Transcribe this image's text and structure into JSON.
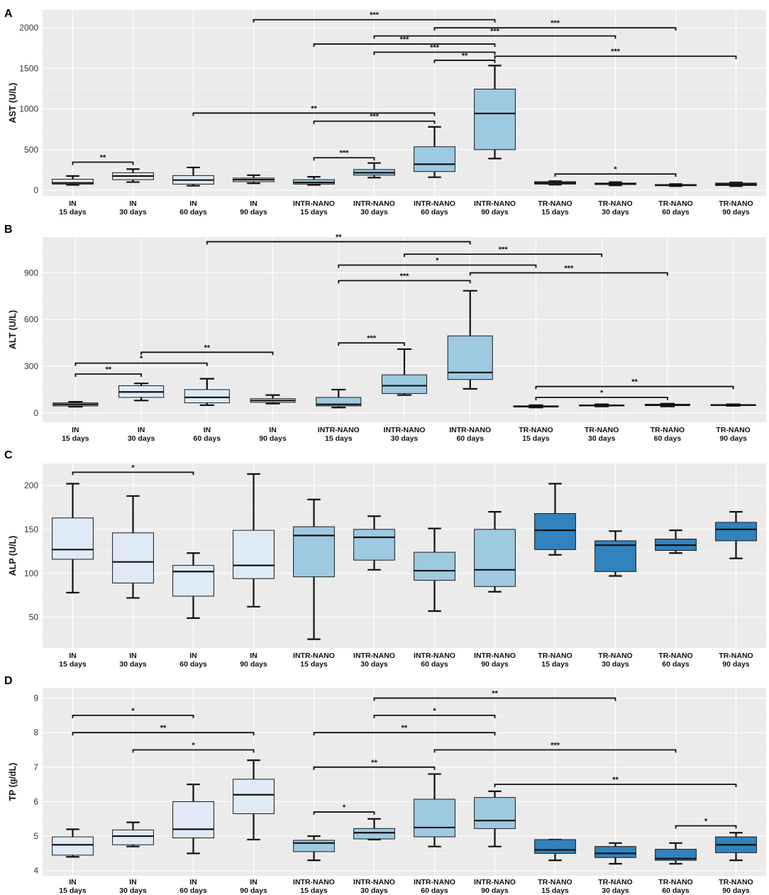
{
  "colors": {
    "IN": "#deebf7",
    "INTR-NANO": "#9ecae1",
    "TR-NANO": "#3182bd"
  },
  "chart_data": [
    {
      "type": "box",
      "panel": "A",
      "ylabel": "AST (U/L)",
      "ylim": [
        -70,
        2220
      ],
      "yticks": [
        0,
        500,
        1000,
        1500,
        2000
      ],
      "categories": [
        {
          "group": "IN",
          "period": "15 days"
        },
        {
          "group": "IN",
          "period": "30 days"
        },
        {
          "group": "IN",
          "period": "60 days"
        },
        {
          "group": "IN",
          "period": "90 days"
        },
        {
          "group": "INTR-NANO",
          "period": "15 days"
        },
        {
          "group": "INTR-NANO",
          "period": "30 days"
        },
        {
          "group": "INTR-NANO",
          "period": "60 days"
        },
        {
          "group": "INTR-NANO",
          "period": "90 days"
        },
        {
          "group": "TR-NANO",
          "period": "15 days"
        },
        {
          "group": "TR-NANO",
          "period": "30 days"
        },
        {
          "group": "TR-NANO",
          "period": "60 days"
        },
        {
          "group": "TR-NANO",
          "period": "90 days"
        }
      ],
      "boxes": [
        {
          "min": 65,
          "q1": 75,
          "median": 90,
          "q3": 135,
          "max": 175
        },
        {
          "min": 100,
          "q1": 130,
          "median": 175,
          "q3": 215,
          "max": 260
        },
        {
          "min": 55,
          "q1": 75,
          "median": 125,
          "q3": 180,
          "max": 280
        },
        {
          "min": 85,
          "q1": 105,
          "median": 130,
          "q3": 150,
          "max": 185
        },
        {
          "min": 65,
          "q1": 75,
          "median": 95,
          "q3": 130,
          "max": 165
        },
        {
          "min": 155,
          "q1": 185,
          "median": 215,
          "q3": 255,
          "max": 335
        },
        {
          "min": 160,
          "q1": 230,
          "median": 320,
          "q3": 535,
          "max": 780
        },
        {
          "min": 390,
          "q1": 500,
          "median": 945,
          "q3": 1245,
          "max": 1535
        },
        {
          "min": 68,
          "q1": 75,
          "median": 90,
          "q3": 105,
          "max": 112
        },
        {
          "min": 60,
          "q1": 70,
          "median": 78,
          "q3": 88,
          "max": 100
        },
        {
          "min": 50,
          "q1": 55,
          "median": 62,
          "q3": 70,
          "max": 75
        },
        {
          "min": 50,
          "q1": 58,
          "median": 72,
          "q3": 88,
          "max": 95
        }
      ],
      "brackets": [
        {
          "from": 1,
          "to": 2,
          "y": 345,
          "label": "**"
        },
        {
          "from": 3,
          "to": 7,
          "y": 950,
          "label": "**"
        },
        {
          "from": 5,
          "to": 6,
          "y": 400,
          "label": "***"
        },
        {
          "from": 5,
          "to": 7,
          "y": 850,
          "label": "***"
        },
        {
          "from": 5,
          "to": 8,
          "y": 1800,
          "label": "***"
        },
        {
          "from": 4,
          "to": 8,
          "y": 2100,
          "label": "***"
        },
        {
          "from": 6,
          "to": 10,
          "y": 1900,
          "label": "***"
        },
        {
          "from": 6,
          "to": 8,
          "y": 1700,
          "label": "***"
        },
        {
          "from": 7,
          "to": 11,
          "y": 2000,
          "label": "***"
        },
        {
          "from": 7,
          "to": 8,
          "y": 1600,
          "label": "**"
        },
        {
          "from": 8,
          "to": 12,
          "y": 1650,
          "label": "***"
        },
        {
          "from": 9,
          "to": 11,
          "y": 200,
          "label": "*"
        }
      ]
    },
    {
      "type": "box",
      "panel": "B",
      "ylabel": "ALT (U/L)",
      "ylim": [
        -60,
        1130
      ],
      "yticks": [
        0,
        300,
        600,
        900
      ],
      "categories": [
        {
          "group": "IN",
          "period": "15 days"
        },
        {
          "group": "IN",
          "period": "30 days"
        },
        {
          "group": "IN",
          "period": "60 days"
        },
        {
          "group": "IN",
          "period": "90 days"
        },
        {
          "group": "INTR-NANO",
          "period": "15 days"
        },
        {
          "group": "INTR-NANO",
          "period": "30 days"
        },
        {
          "group": "INTR-NANO",
          "period": "60 days"
        },
        {
          "group": "TR-NANO",
          "period": "15 days"
        },
        {
          "group": "TR-NANO",
          "period": "30 days"
        },
        {
          "group": "TR-NANO",
          "period": "60 days"
        },
        {
          "group": "TR-NANO",
          "period": "90 days"
        }
      ],
      "boxes": [
        {
          "min": 40,
          "q1": 45,
          "median": 55,
          "q3": 65,
          "max": 72
        },
        {
          "min": 80,
          "q1": 100,
          "median": 135,
          "q3": 175,
          "max": 190
        },
        {
          "min": 50,
          "q1": 65,
          "median": 100,
          "q3": 150,
          "max": 220
        },
        {
          "min": 60,
          "q1": 68,
          "median": 80,
          "q3": 92,
          "max": 115
        },
        {
          "min": 35,
          "q1": 45,
          "median": 55,
          "q3": 100,
          "max": 150
        },
        {
          "min": 115,
          "q1": 125,
          "median": 175,
          "q3": 245,
          "max": 410
        },
        {
          "min": 155,
          "q1": 215,
          "median": 260,
          "q3": 495,
          "max": 785
        },
        {
          "min": 35,
          "q1": 38,
          "median": 42,
          "q3": 46,
          "max": 50
        },
        {
          "min": 42,
          "q1": 45,
          "median": 48,
          "q3": 52,
          "max": 56
        },
        {
          "min": 42,
          "q1": 47,
          "median": 52,
          "q3": 56,
          "max": 60
        },
        {
          "min": 46,
          "q1": 48,
          "median": 51,
          "q3": 54,
          "max": 56
        }
      ],
      "brackets": [
        {
          "from": 1,
          "to": 2,
          "y": 250,
          "label": "**"
        },
        {
          "from": 1,
          "to": 3,
          "y": 320,
          "label": "*"
        },
        {
          "from": 2,
          "to": 4,
          "y": 390,
          "label": "**"
        },
        {
          "from": 3,
          "to": 7,
          "y": 1100,
          "label": "**"
        },
        {
          "from": 5,
          "to": 6,
          "y": 450,
          "label": "***"
        },
        {
          "from": 5,
          "to": 7,
          "y": 850,
          "label": "***"
        },
        {
          "from": 5,
          "to": 8,
          "y": 950,
          "label": "*"
        },
        {
          "from": 6,
          "to": 9,
          "y": 1020,
          "label": "***"
        },
        {
          "from": 7,
          "to": 10,
          "y": 900,
          "label": "***"
        },
        {
          "from": 8,
          "to": 10,
          "y": 100,
          "label": "*"
        },
        {
          "from": 8,
          "to": 11,
          "y": 170,
          "label": "**"
        }
      ]
    },
    {
      "type": "box",
      "panel": "C",
      "ylabel": "ALP (U/L)",
      "ylim": [
        15,
        225
      ],
      "yticks": [
        50,
        100,
        150,
        200
      ],
      "categories": [
        {
          "group": "IN",
          "period": "15 days"
        },
        {
          "group": "IN",
          "period": "30 days"
        },
        {
          "group": "IN",
          "period": "60 days"
        },
        {
          "group": "IN",
          "period": "90 days"
        },
        {
          "group": "INTR-NANO",
          "period": "15 days"
        },
        {
          "group": "INTR-NANO",
          "period": "30 days"
        },
        {
          "group": "INTR-NANO",
          "period": "60 days"
        },
        {
          "group": "INTR-NANO",
          "period": "90 days"
        },
        {
          "group": "TR-NANO",
          "period": "15 days"
        },
        {
          "group": "TR-NANO",
          "period": "30 days"
        },
        {
          "group": "TR-NANO",
          "period": "60 days"
        },
        {
          "group": "TR-NANO",
          "period": "90 days"
        }
      ],
      "boxes": [
        {
          "min": 78,
          "q1": 116,
          "median": 127,
          "q3": 163,
          "max": 202
        },
        {
          "min": 72,
          "q1": 89,
          "median": 113,
          "q3": 146,
          "max": 188
        },
        {
          "min": 49,
          "q1": 74,
          "median": 102,
          "q3": 109,
          "max": 123
        },
        {
          "min": 62,
          "q1": 94,
          "median": 109,
          "q3": 149,
          "max": 213
        },
        {
          "min": 25,
          "q1": 96,
          "median": 143,
          "q3": 153,
          "max": 184
        },
        {
          "min": 104,
          "q1": 115,
          "median": 141,
          "q3": 150,
          "max": 165
        },
        {
          "min": 57,
          "q1": 92,
          "median": 103,
          "q3": 124,
          "max": 151
        },
        {
          "min": 79,
          "q1": 85,
          "median": 104,
          "q3": 150,
          "max": 170
        },
        {
          "min": 121,
          "q1": 127,
          "median": 149,
          "q3": 168,
          "max": 202
        },
        {
          "min": 97,
          "q1": 102,
          "median": 132,
          "q3": 137,
          "max": 148
        },
        {
          "min": 123,
          "q1": 126,
          "median": 132,
          "q3": 139,
          "max": 149
        },
        {
          "min": 117,
          "q1": 137,
          "median": 150,
          "q3": 158,
          "max": 170
        }
      ],
      "brackets": [
        {
          "from": 1,
          "to": 3,
          "y": 215,
          "label": "*"
        }
      ]
    },
    {
      "type": "box",
      "panel": "D",
      "ylabel": "TP (g/dL)",
      "ylim": [
        3.85,
        9.3
      ],
      "yticks": [
        4,
        5,
        6,
        7,
        8,
        9
      ],
      "categories": [
        {
          "group": "IN",
          "period": "15 days"
        },
        {
          "group": "IN",
          "period": "30 days"
        },
        {
          "group": "IN",
          "period": "60 days"
        },
        {
          "group": "IN",
          "period": "90 days"
        },
        {
          "group": "INTR-NANO",
          "period": "15 days"
        },
        {
          "group": "INTR-NANO",
          "period": "30 days"
        },
        {
          "group": "INTR-NANO",
          "period": "60 days"
        },
        {
          "group": "INTR-NANO",
          "period": "90 days"
        },
        {
          "group": "TR-NANO",
          "period": "15 days"
        },
        {
          "group": "TR-NANO",
          "period": "30 days"
        },
        {
          "group": "TR-NANO",
          "period": "60 days"
        },
        {
          "group": "TR-NANO",
          "period": "90 days"
        }
      ],
      "boxes": [
        {
          "min": 4.4,
          "q1": 4.45,
          "median": 4.75,
          "q3": 4.98,
          "max": 5.2
        },
        {
          "min": 4.7,
          "q1": 4.75,
          "median": 5.0,
          "q3": 5.18,
          "max": 5.4
        },
        {
          "min": 4.5,
          "q1": 4.95,
          "median": 5.2,
          "q3": 6.0,
          "max": 6.5
        },
        {
          "min": 4.9,
          "q1": 5.65,
          "median": 6.2,
          "q3": 6.65,
          "max": 7.2
        },
        {
          "min": 4.3,
          "q1": 4.55,
          "median": 4.8,
          "q3": 4.88,
          "max": 5.0
        },
        {
          "min": 4.9,
          "q1": 4.92,
          "median": 5.1,
          "q3": 5.22,
          "max": 5.5
        },
        {
          "min": 4.7,
          "q1": 4.98,
          "median": 5.25,
          "q3": 6.07,
          "max": 6.8
        },
        {
          "min": 4.7,
          "q1": 5.22,
          "median": 5.45,
          "q3": 6.12,
          "max": 6.3
        },
        {
          "min": 4.3,
          "q1": 4.5,
          "median": 4.6,
          "q3": 4.9,
          "max": 4.9
        },
        {
          "min": 4.2,
          "q1": 4.38,
          "median": 4.5,
          "q3": 4.7,
          "max": 4.8
        },
        {
          "min": 4.2,
          "q1": 4.3,
          "median": 4.35,
          "q3": 4.62,
          "max": 4.8
        },
        {
          "min": 4.3,
          "q1": 4.52,
          "median": 4.75,
          "q3": 4.98,
          "max": 5.1
        }
      ],
      "brackets": [
        {
          "from": 1,
          "to": 3,
          "y": 8.5,
          "label": "*"
        },
        {
          "from": 1,
          "to": 4,
          "y": 8.0,
          "label": "**"
        },
        {
          "from": 2,
          "to": 4,
          "y": 7.5,
          "label": "*"
        },
        {
          "from": 5,
          "to": 6,
          "y": 5.7,
          "label": "*"
        },
        {
          "from": 5,
          "to": 7,
          "y": 7.0,
          "label": "**"
        },
        {
          "from": 5,
          "to": 8,
          "y": 8.0,
          "label": "**"
        },
        {
          "from": 6,
          "to": 8,
          "y": 8.5,
          "label": "*"
        },
        {
          "from": 6,
          "to": 10,
          "y": 9.0,
          "label": "**"
        },
        {
          "from": 7,
          "to": 11,
          "y": 7.5,
          "label": "***"
        },
        {
          "from": 8,
          "to": 12,
          "y": 6.5,
          "label": "**"
        },
        {
          "from": 11,
          "to": 12,
          "y": 5.3,
          "label": "*"
        }
      ]
    }
  ]
}
